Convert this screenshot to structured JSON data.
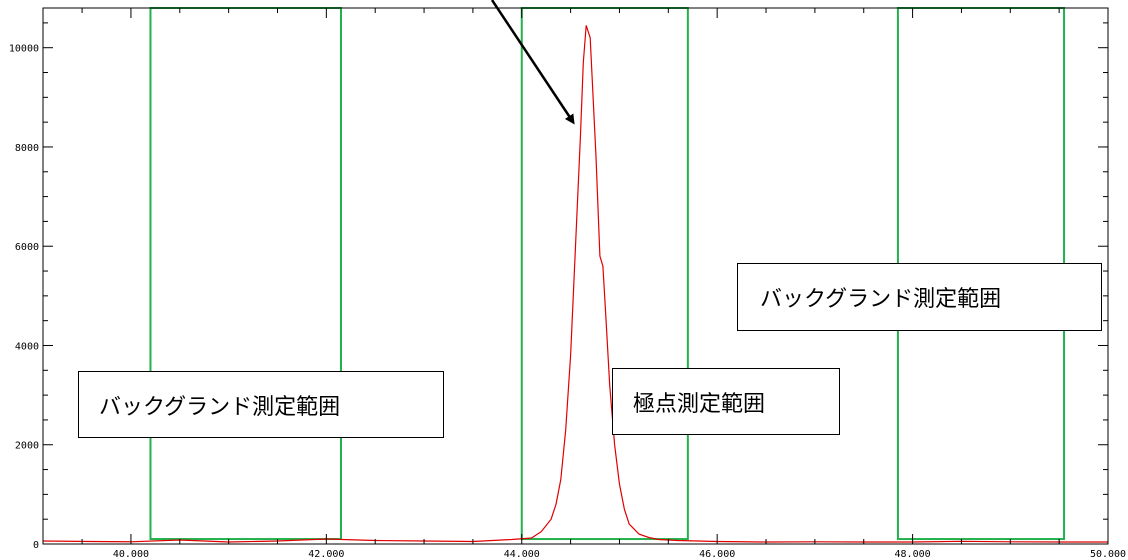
{
  "chart_data": {
    "type": "line",
    "title": "",
    "xlabel": "",
    "ylabel": "",
    "xlim": [
      39.1,
      50.0
    ],
    "ylim": [
      0,
      10800
    ],
    "x_ticks": [
      40,
      42,
      44,
      46,
      48,
      50
    ],
    "x_tick_labels": [
      "40.000",
      "42.000",
      "44.000",
      "46.000",
      "48.000",
      "50.000"
    ],
    "y_ticks": [
      0,
      2000,
      4000,
      6000,
      8000,
      10000
    ],
    "y_tick_labels": [
      "0",
      "2000",
      "4000",
      "6000",
      "8000",
      "10000"
    ],
    "grid": false,
    "series": [
      {
        "color": "#e00000",
        "x": [
          39.1,
          39.6,
          40.0,
          40.5,
          41.0,
          41.5,
          42.0,
          42.5,
          43.0,
          43.5,
          43.9,
          44.1,
          44.2,
          44.3,
          44.35,
          44.4,
          44.45,
          44.5,
          44.55,
          44.6,
          44.63,
          44.66,
          44.7,
          44.73,
          44.76,
          44.8,
          44.83,
          44.86,
          44.9,
          44.95,
          45.0,
          45.05,
          45.1,
          45.2,
          45.3,
          45.4,
          45.6,
          46.0,
          46.5,
          47.0,
          47.5,
          48.0,
          48.5,
          49.0,
          49.5,
          50.0
        ],
        "y": [
          60,
          50,
          45,
          80,
          40,
          60,
          100,
          70,
          60,
          50,
          90,
          120,
          250,
          500,
          800,
          1300,
          2300,
          3800,
          6000,
          8200,
          9700,
          10450,
          10200,
          9000,
          7800,
          5800,
          5600,
          4600,
          3200,
          2000,
          1200,
          700,
          400,
          200,
          130,
          90,
          70,
          50,
          40,
          45,
          40,
          40,
          55,
          45,
          40,
          40
        ]
      }
    ],
    "ranges": [
      {
        "kind": "background",
        "x": [
          40.2,
          42.15
        ],
        "y": [
          100,
          10800
        ],
        "color": "#22b14c"
      },
      {
        "kind": "peak",
        "x": [
          44.0,
          45.7
        ],
        "y": [
          100,
          10800
        ],
        "color": "#22b14c"
      },
      {
        "kind": "background",
        "x": [
          47.85,
          49.55
        ],
        "y": [
          100,
          10800
        ],
        "color": "#22b14c"
      }
    ],
    "annotations": {
      "background_left": "バックグランド測定範囲",
      "peak": "極点測定範囲",
      "background_right": "バックグランド測定範囲"
    },
    "arrow_color": "#000000"
  }
}
